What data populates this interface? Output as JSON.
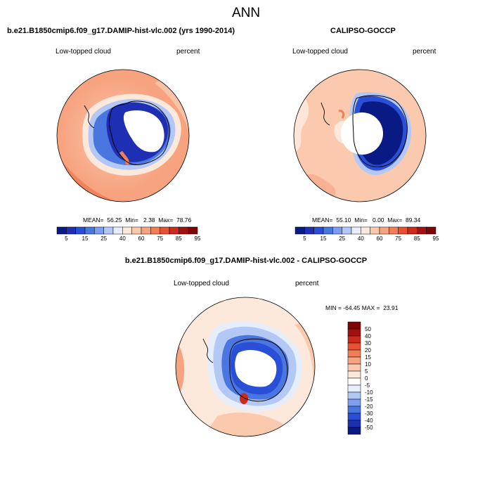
{
  "figure_title": "ANN",
  "palette": {
    "seq": [
      "#0a1a85",
      "#1e2fb4",
      "#2a4fd7",
      "#4a76e0",
      "#7d9ef0",
      "#b4c8f6",
      "#e7eefb",
      "#fde9dc",
      "#fac9ae",
      "#f7a380",
      "#f27d56",
      "#e85233",
      "#cc2a1a",
      "#a31010",
      "#7a0606"
    ],
    "diff": [
      "#7a0606",
      "#a31010",
      "#cc2a1a",
      "#e85233",
      "#f27d56",
      "#f7a380",
      "#fac9ae",
      "#fde9dc",
      "#ffffff",
      "#e7eefb",
      "#b4c8f6",
      "#7d9ef0",
      "#4a76e0",
      "#2a4fd7",
      "#1e2fb4",
      "#0a1a85"
    ]
  },
  "panels": [
    {
      "title": "b.e21.B1850cmip6.f09_g17.DAMIP-hist-vlc.002 (yrs 1990-2014)",
      "variable": "Low-topped cloud",
      "units": "percent",
      "stats": {
        "mean": "56.25",
        "min": "2.38",
        "max": "78.76"
      },
      "stats_text": "MEAN=  56.25  Min=   2.38  Max=  78.76",
      "colorbar_labels": [
        "5",
        "15",
        "25",
        "40",
        "60",
        "75",
        "85",
        "95"
      ]
    },
    {
      "title": "CALIPSO-GOCCP",
      "variable": "Low-topped cloud",
      "units": "percent",
      "stats": {
        "mean": "55.10",
        "min": "0.00",
        "max": "89.34"
      },
      "stats_text": "MEAN=  55.10  Min=   0.00  Max=  89.34",
      "colorbar_labels": [
        "5",
        "15",
        "25",
        "40",
        "60",
        "75",
        "85",
        "95"
      ]
    },
    {
      "title": "b.e21.B1850cmip6.f09_g17.DAMIP-hist-vlc.002 - CALIPSO-GOCCP",
      "variable": "Low-topped cloud",
      "units": "percent",
      "stats": {
        "min": "-64.45",
        "max": "23.91"
      },
      "stats_text": "MIN = -64.45 MAX =  23.91",
      "colorbar_labels": [
        "50",
        "40",
        "30",
        "20",
        "15",
        "10",
        "5",
        "0",
        "-5",
        "-10",
        "-15",
        "-20",
        "-30",
        "-40",
        "-50"
      ]
    }
  ]
}
